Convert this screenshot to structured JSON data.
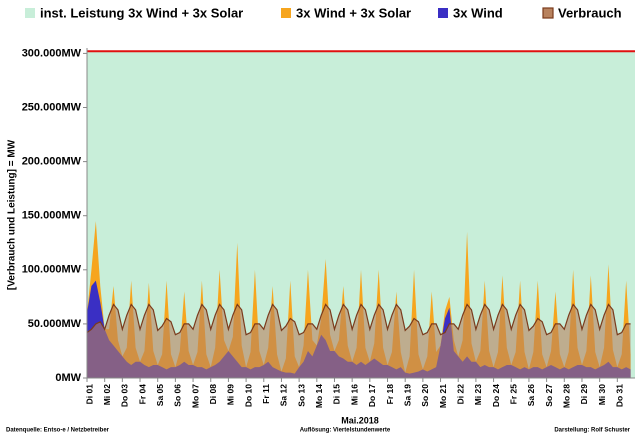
{
  "chart_data": {
    "type": "area",
    "legend": "top",
    "y_label": "[Verbrauch und Leistung] = MW",
    "x_label": "Mai.2018",
    "footnotes": [
      "Datenquelle: Entso-e  / Netzbetreiber",
      "Auflösung: Viertelstundenwerte",
      "Darstellung: Rolf Schuster"
    ],
    "xlim": [
      1,
      32
    ],
    "ylim": [
      0,
      305000
    ],
    "yticks": [
      {
        "value": 0,
        "label": "0MW"
      },
      {
        "value": 50000,
        "label": "50.000MW"
      },
      {
        "value": 100000,
        "label": "100.000MW"
      },
      {
        "value": 150000,
        "label": "150.000MW"
      },
      {
        "value": 200000,
        "label": "200.000MW"
      },
      {
        "value": 250000,
        "label": "250.000MW"
      },
      {
        "value": 300000,
        "label": "300.000MW"
      }
    ],
    "xticks": [
      {
        "value": 1,
        "label": "Di 01"
      },
      {
        "value": 2,
        "label": "Mi 02"
      },
      {
        "value": 3,
        "label": "Do 03"
      },
      {
        "value": 4,
        "label": "Fr 04"
      },
      {
        "value": 5,
        "label": "Sa 05"
      },
      {
        "value": 6,
        "label": "So 06"
      },
      {
        "value": 7,
        "label": "Mo 07"
      },
      {
        "value": 8,
        "label": "Di 08"
      },
      {
        "value": 9,
        "label": "Mi 09"
      },
      {
        "value": 10,
        "label": "Do 10"
      },
      {
        "value": 11,
        "label": "Fr 11"
      },
      {
        "value": 12,
        "label": "Sa 12"
      },
      {
        "value": 13,
        "label": "So 13"
      },
      {
        "value": 14,
        "label": "Mo 14"
      },
      {
        "value": 15,
        "label": "Di 15"
      },
      {
        "value": 16,
        "label": "Mi 16"
      },
      {
        "value": 17,
        "label": "Do 17"
      },
      {
        "value": 18,
        "label": "Fr 18"
      },
      {
        "value": 19,
        "label": "Sa 19"
      },
      {
        "value": 20,
        "label": "So 20"
      },
      {
        "value": 21,
        "label": "Mo 21"
      },
      {
        "value": 22,
        "label": "Di 22"
      },
      {
        "value": 23,
        "label": "Mi 23"
      },
      {
        "value": 24,
        "label": "Do 24"
      },
      {
        "value": 25,
        "label": "Fr 25"
      },
      {
        "value": 26,
        "label": "Sa 26"
      },
      {
        "value": 27,
        "label": "So 27"
      },
      {
        "value": 28,
        "label": "Mo 28"
      },
      {
        "value": 29,
        "label": "Di 29"
      },
      {
        "value": 30,
        "label": "Mi 30"
      },
      {
        "value": 31,
        "label": "Do 31"
      }
    ],
    "x": [
      1,
      1.25,
      1.5,
      1.75,
      2,
      2.25,
      2.5,
      2.75,
      3,
      3.25,
      3.5,
      3.75,
      4,
      4.25,
      4.5,
      4.75,
      5,
      5.25,
      5.5,
      5.75,
      6,
      6.25,
      6.5,
      6.75,
      7,
      7.25,
      7.5,
      7.75,
      8,
      8.25,
      8.5,
      8.75,
      9,
      9.25,
      9.5,
      9.75,
      10,
      10.25,
      10.5,
      10.75,
      11,
      11.25,
      11.5,
      11.75,
      12,
      12.25,
      12.5,
      12.75,
      13,
      13.25,
      13.5,
      13.75,
      14,
      14.25,
      14.5,
      14.75,
      15,
      15.25,
      15.5,
      15.75,
      16,
      16.25,
      16.5,
      16.75,
      17,
      17.25,
      17.5,
      17.75,
      18,
      18.25,
      18.5,
      18.75,
      19,
      19.25,
      19.5,
      19.75,
      20,
      20.25,
      20.5,
      20.75,
      21,
      21.25,
      21.5,
      21.75,
      22,
      22.25,
      22.5,
      22.75,
      23,
      23.25,
      23.5,
      23.75,
      24,
      24.25,
      24.5,
      24.75,
      25,
      25.25,
      25.5,
      25.75,
      26,
      26.25,
      26.5,
      26.75,
      27,
      27.25,
      27.5,
      27.75,
      28,
      28.25,
      28.5,
      28.75,
      29,
      29.25,
      29.5,
      29.75,
      30,
      30.25,
      30.5,
      30.75,
      31,
      31.25,
      31.5,
      31.75
    ],
    "series": [
      {
        "name": "inst. Leistung 3x Wind + 3x Solar",
        "color": "#c8eed9",
        "line_color": "#e01010",
        "x": [
          1,
          32
        ],
        "values": [
          302000,
          302000
        ]
      },
      {
        "name": "3x Wind + 3x Solar",
        "color": "#f6a51e",
        "values": [
          60000,
          100000,
          145000,
          85000,
          45000,
          45000,
          85000,
          35000,
          20000,
          28000,
          90000,
          28000,
          15000,
          25000,
          88000,
          25000,
          12000,
          22000,
          90000,
          22000,
          10000,
          25000,
          80000,
          25000,
          12000,
          24000,
          90000,
          22000,
          10000,
          28000,
          100000,
          35000,
          25000,
          38000,
          125000,
          30000,
          10000,
          24000,
          100000,
          25000,
          12000,
          28000,
          85000,
          22000,
          6000,
          18000,
          90000,
          20000,
          10000,
          30000,
          100000,
          35000,
          30000,
          55000,
          110000,
          40000,
          25000,
          35000,
          85000,
          30000,
          15000,
          28000,
          100000,
          28000,
          15000,
          32000,
          100000,
          28000,
          12000,
          24000,
          80000,
          24000,
          5000,
          20000,
          100000,
          22000,
          8000,
          20000,
          80000,
          24000,
          30000,
          62000,
          75000,
          35000,
          20000,
          35000,
          135000,
          32000,
          15000,
          25000,
          90000,
          25000,
          10000,
          24000,
          95000,
          28000,
          12000,
          24000,
          90000,
          24000,
          8000,
          24000,
          90000,
          22000,
          10000,
          25000,
          80000,
          22000,
          10000,
          24000,
          100000,
          28000,
          12000,
          25000,
          95000,
          24000,
          10000,
          28000,
          105000,
          26000,
          10000,
          22000,
          90000,
          22000
        ]
      },
      {
        "name": "3x Wind",
        "color": "#3a2fc4",
        "values": [
          60000,
          85000,
          90000,
          70000,
          45000,
          35000,
          30000,
          25000,
          20000,
          15000,
          12000,
          15000,
          15000,
          12000,
          10000,
          12000,
          12000,
          10000,
          8000,
          10000,
          10000,
          12000,
          15000,
          12000,
          12000,
          10000,
          10000,
          8000,
          10000,
          12000,
          15000,
          20000,
          25000,
          20000,
          15000,
          10000,
          10000,
          8000,
          10000,
          10000,
          12000,
          15000,
          10000,
          8000,
          6000,
          5000,
          5000,
          4000,
          10000,
          15000,
          25000,
          20000,
          30000,
          40000,
          35000,
          25000,
          25000,
          20000,
          18000,
          15000,
          15000,
          12000,
          15000,
          12000,
          15000,
          18000,
          15000,
          12000,
          12000,
          10000,
          8000,
          10000,
          5000,
          4000,
          5000,
          6000,
          8000,
          6000,
          8000,
          10000,
          30000,
          55000,
          65000,
          25000,
          20000,
          15000,
          20000,
          15000,
          15000,
          10000,
          12000,
          10000,
          10000,
          8000,
          10000,
          12000,
          12000,
          10000,
          8000,
          10000,
          8000,
          10000,
          10000,
          8000,
          10000,
          12000,
          10000,
          8000,
          10000,
          8000,
          10000,
          12000,
          12000,
          10000,
          10000,
          8000,
          10000,
          12000,
          15000,
          10000,
          10000,
          8000,
          10000,
          8000
        ]
      },
      {
        "name": "Verbrauch",
        "color": "#b8825e",
        "line_color": "#7b3b1c",
        "values": [
          42000,
          45000,
          50000,
          52000,
          45000,
          58000,
          68000,
          63000,
          45000,
          58000,
          68000,
          63000,
          45000,
          58000,
          68000,
          63000,
          44000,
          48000,
          55000,
          52000,
          40000,
          42000,
          50000,
          50000,
          45000,
          58000,
          68000,
          63000,
          45000,
          58000,
          68000,
          63000,
          45000,
          58000,
          68000,
          63000,
          40000,
          42000,
          50000,
          50000,
          45000,
          58000,
          68000,
          63000,
          44000,
          48000,
          55000,
          52000,
          40000,
          42000,
          50000,
          50000,
          45000,
          58000,
          68000,
          63000,
          45000,
          58000,
          68000,
          63000,
          45000,
          58000,
          68000,
          63000,
          45000,
          58000,
          68000,
          63000,
          45000,
          58000,
          68000,
          63000,
          44000,
          48000,
          55000,
          52000,
          40000,
          42000,
          50000,
          50000,
          40000,
          42000,
          50000,
          50000,
          45000,
          58000,
          68000,
          63000,
          45000,
          58000,
          68000,
          63000,
          45000,
          58000,
          68000,
          63000,
          45000,
          58000,
          68000,
          63000,
          44000,
          48000,
          55000,
          52000,
          40000,
          42000,
          50000,
          50000,
          45000,
          58000,
          68000,
          63000,
          45000,
          58000,
          68000,
          63000,
          45000,
          58000,
          68000,
          63000,
          40000,
          42000,
          50000,
          50000
        ]
      }
    ]
  }
}
